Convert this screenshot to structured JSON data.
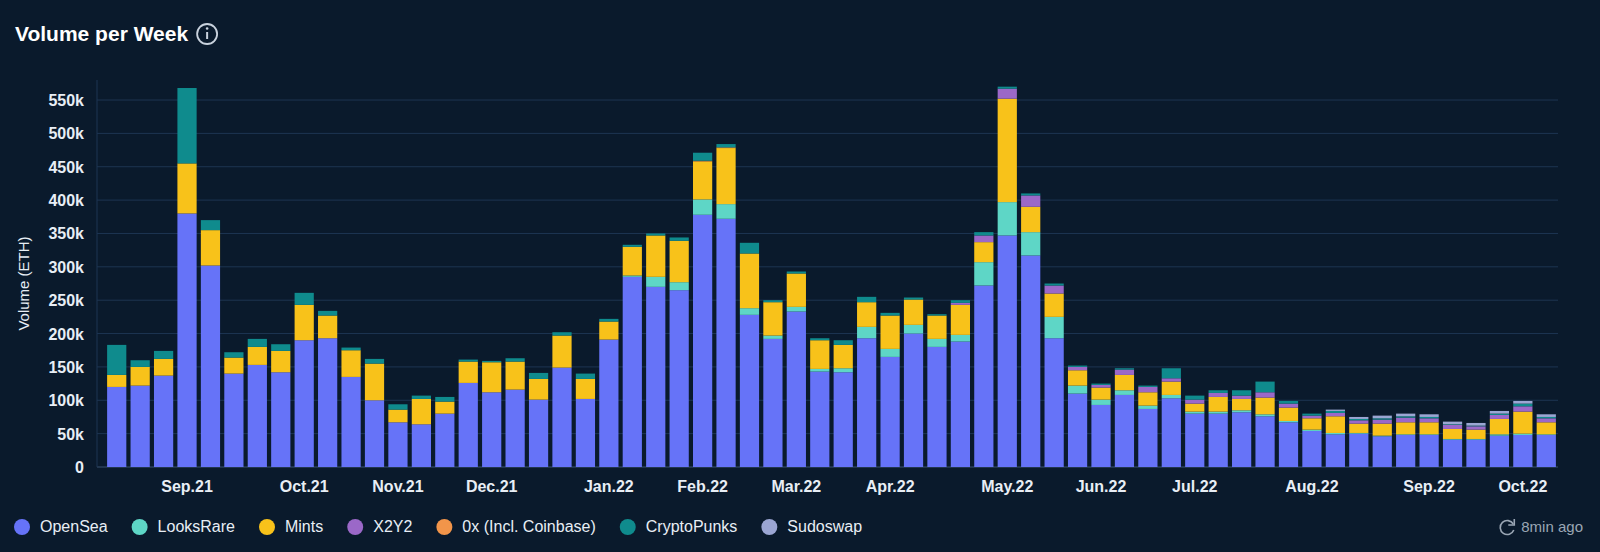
{
  "chart_data": {
    "type": "bar",
    "stacked": true,
    "grid": true,
    "legend": "bottom",
    "title": "Volume per Week",
    "y_label": "Volume (ETH)",
    "annotation": "8min ago",
    "ylim": [
      0,
      580000
    ],
    "yticks": [
      0,
      {
        "value": 50000,
        "label": "50k"
      },
      {
        "value": 100000,
        "label": "100k"
      },
      {
        "value": 150000,
        "label": "150k"
      },
      {
        "value": 200000,
        "label": "200k"
      },
      {
        "value": 250000,
        "label": "250k"
      },
      {
        "value": 300000,
        "label": "300k"
      },
      {
        "value": 350000,
        "label": "350k"
      },
      {
        "value": 400000,
        "label": "400k"
      },
      {
        "value": 450000,
        "label": "450k"
      },
      {
        "value": 500000,
        "label": "500k"
      },
      {
        "value": 550000,
        "label": "550k"
      }
    ],
    "categories": [
      null,
      null,
      null,
      "Sep.21",
      null,
      null,
      null,
      null,
      "Oct.21",
      null,
      null,
      null,
      "Nov.21",
      null,
      null,
      null,
      "Dec.21",
      null,
      null,
      null,
      null,
      "Jan.22",
      null,
      null,
      null,
      "Feb.22",
      null,
      null,
      null,
      "Mar.22",
      null,
      null,
      null,
      "Apr.22",
      null,
      null,
      null,
      null,
      "May.22",
      null,
      null,
      null,
      "Jun.22",
      null,
      null,
      null,
      "Jul.22",
      null,
      null,
      null,
      null,
      "Aug.22",
      null,
      null,
      null,
      null,
      "Sep.22",
      null,
      null,
      null,
      "Oct.22",
      null
    ],
    "series": [
      {
        "name": "OpenSea",
        "color": "#6673f8",
        "values": [
          120000,
          122000,
          137000,
          380000,
          302000,
          140000,
          153000,
          142000,
          190000,
          193000,
          135000,
          100000,
          67000,
          64000,
          80000,
          126000,
          112000,
          116000,
          101000,
          149000,
          102000,
          191000,
          285000,
          270000,
          265000,
          378000,
          372000,
          228000,
          192000,
          233000,
          143000,
          142000,
          193000,
          165000,
          200000,
          180000,
          188000,
          272000,
          347000,
          317000,
          193000,
          110000,
          93000,
          108000,
          87000,
          103000,
          80000,
          80000,
          82000,
          76000,
          67000,
          54000,
          49000,
          50000,
          46000,
          48000,
          48000,
          41000,
          41000,
          47000,
          48000,
          48000
        ]
      },
      {
        "name": "LooksRare",
        "color": "#5ed6c6",
        "values": [
          0,
          0,
          0,
          0,
          0,
          0,
          0,
          0,
          0,
          0,
          0,
          0,
          0,
          0,
          0,
          0,
          0,
          0,
          0,
          0,
          0,
          0,
          2000,
          15000,
          12000,
          23000,
          22000,
          10000,
          5000,
          7000,
          4000,
          6000,
          17000,
          12000,
          13000,
          12000,
          10000,
          35000,
          50000,
          35000,
          32000,
          12000,
          8000,
          7000,
          5000,
          5000,
          3000,
          3000,
          3000,
          3000,
          2000,
          2000,
          2000,
          1000,
          1000,
          1000,
          1000,
          1000,
          1000,
          2000,
          2000,
          1000
        ]
      },
      {
        "name": "Mints",
        "color": "#f8c21a",
        "values": [
          18000,
          28000,
          25000,
          75000,
          53000,
          24000,
          27000,
          32000,
          53000,
          34000,
          40000,
          55000,
          19000,
          38000,
          18000,
          32000,
          45000,
          42000,
          31000,
          48000,
          30000,
          27000,
          43000,
          62000,
          62000,
          57000,
          84000,
          82000,
          50000,
          50000,
          43000,
          35000,
          37000,
          50000,
          38000,
          35000,
          45000,
          30000,
          155000,
          38000,
          35000,
          23000,
          18000,
          23000,
          20000,
          20000,
          12000,
          22000,
          17000,
          25000,
          20000,
          17000,
          25000,
          14000,
          18000,
          18000,
          18000,
          15000,
          14000,
          23000,
          33000,
          18000
        ]
      },
      {
        "name": "X2Y2",
        "color": "#9b68c8",
        "values": [
          0,
          0,
          0,
          0,
          0,
          0,
          0,
          0,
          0,
          0,
          0,
          0,
          0,
          0,
          0,
          0,
          0,
          0,
          0,
          0,
          0,
          0,
          0,
          0,
          0,
          0,
          0,
          0,
          0,
          0,
          0,
          0,
          0,
          0,
          0,
          0,
          3000,
          10000,
          15000,
          17000,
          12000,
          5000,
          4000,
          8000,
          8000,
          5000,
          6000,
          6000,
          5000,
          8000,
          6000,
          4000,
          5000,
          5000,
          6000,
          7000,
          6000,
          6000,
          5000,
          6000,
          8000,
          6000
        ]
      },
      {
        "name": "0x (Incl. Coinbase)",
        "color": "#f2954a",
        "values": [
          0,
          0,
          0,
          0,
          0,
          0,
          0,
          0,
          0,
          0,
          0,
          0,
          0,
          0,
          0,
          0,
          0,
          0,
          0,
          0,
          0,
          0,
          0,
          0,
          0,
          1000,
          1000,
          0,
          0,
          0,
          0,
          0,
          0,
          0,
          0,
          0,
          0,
          0,
          0,
          0,
          0,
          0,
          0,
          0,
          0,
          0,
          0,
          0,
          0,
          0,
          0,
          0,
          0,
          0,
          0,
          0,
          0,
          0,
          0,
          0,
          0,
          0
        ]
      },
      {
        "name": "CryptoPunks",
        "color": "#0f8b8d",
        "values": [
          45000,
          10000,
          12000,
          113000,
          15000,
          8000,
          12000,
          10000,
          18000,
          7000,
          4000,
          7000,
          8000,
          5000,
          7000,
          3000,
          2000,
          5000,
          9000,
          5000,
          8000,
          4000,
          3000,
          3000,
          5000,
          12000,
          5000,
          16000,
          3000,
          3000,
          3000,
          7000,
          8000,
          4000,
          3000,
          2000,
          4000,
          5000,
          3000,
          3000,
          3000,
          2000,
          2000,
          2000,
          2000,
          15000,
          6000,
          4000,
          8000,
          16000,
          4000,
          3000,
          3000,
          2000,
          2000,
          2000,
          2000,
          1000,
          1000,
          2000,
          4000,
          2000
        ]
      },
      {
        "name": "Sudoswap",
        "color": "#9ba6d3",
        "values": [
          0,
          0,
          0,
          0,
          0,
          0,
          0,
          0,
          0,
          0,
          0,
          0,
          0,
          0,
          0,
          0,
          0,
          0,
          0,
          0,
          0,
          0,
          0,
          0,
          0,
          0,
          0,
          0,
          0,
          0,
          0,
          0,
          0,
          0,
          0,
          0,
          0,
          0,
          0,
          0,
          0,
          0,
          0,
          0,
          0,
          0,
          0,
          0,
          0,
          0,
          0,
          0,
          2000,
          3000,
          4000,
          4000,
          4000,
          4000,
          4000,
          4000,
          4000,
          4000
        ]
      }
    ]
  }
}
